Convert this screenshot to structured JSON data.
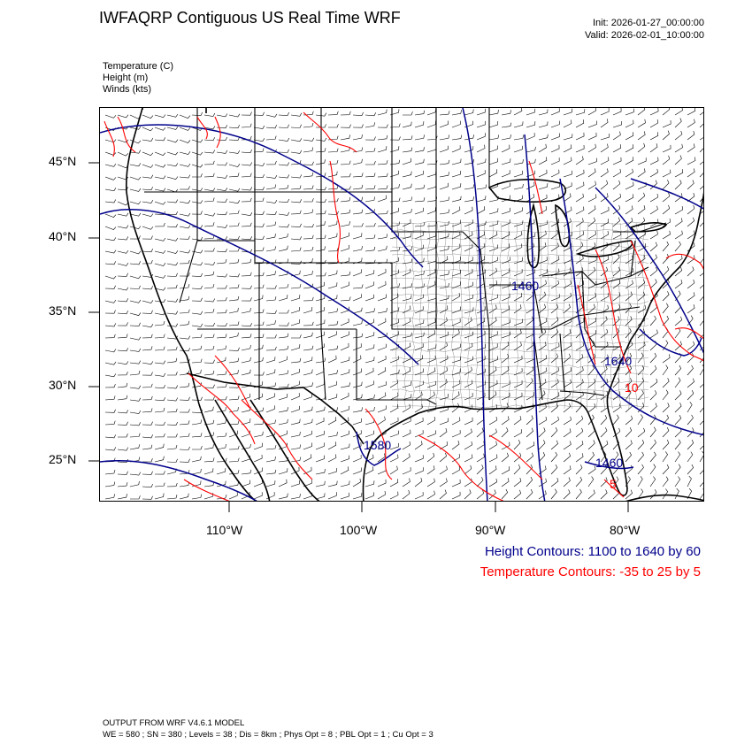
{
  "header": {
    "title": "IWFAQRP Contiguous US Real Time WRF",
    "init": "Init: 2026-01-27_00:00:00",
    "valid": "Valid: 2026-02-01_10:00:00"
  },
  "fields": {
    "temperature": "Temperature   (C)",
    "height": "Height   (m)",
    "winds": "Winds   (kts)"
  },
  "axes": {
    "latitude_ticks": [
      "45°N",
      "40°N",
      "35°N",
      "30°N",
      "25°N"
    ],
    "longitude_ticks": [
      "110°W",
      "100°W",
      "90°W",
      "80°W"
    ]
  },
  "contour_labels": {
    "height": [
      "1460",
      "1640",
      "1580",
      "1460"
    ],
    "temperature": [
      "10",
      "5"
    ]
  },
  "legend": {
    "height_contours": "Height Contours: 1100 to 1640 by 60",
    "temperature_contours": "Temperature Contours: -35 to 25 by 5"
  },
  "footer": {
    "line1": "OUTPUT FROM WRF V4.6.1 MODEL",
    "line2": "WE = 580 ; SN = 380 ; Levels = 38 ; Dis = 8km ; Phys Opt = 8 ; PBL Opt = 1 ; Cu Opt = 3"
  },
  "colors": {
    "height_contour": "#00008b",
    "temperature_contour": "#ff0000",
    "boundaries": "#000000",
    "wind_barbs": "#000000"
  }
}
